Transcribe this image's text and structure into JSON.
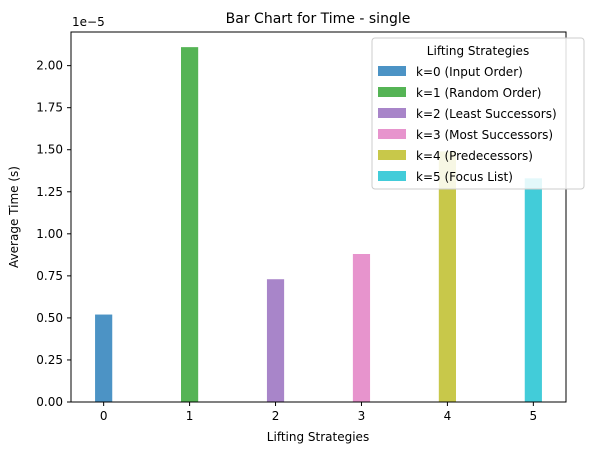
{
  "chart_data": {
    "type": "bar",
    "title": "Bar Chart for Time - single",
    "xlabel": "Lifting Strategies",
    "ylabel": "Average Time (s)",
    "y_scale_label": "1e−5",
    "categories": [
      "0",
      "1",
      "2",
      "3",
      "4",
      "5"
    ],
    "ylim": [
      0,
      2.2
    ],
    "yticks": [
      "0.00",
      "0.25",
      "0.50",
      "0.75",
      "1.00",
      "1.25",
      "1.50",
      "1.75",
      "2.00"
    ],
    "legend": {
      "title": "Lifting Strategies",
      "placement": "top-right"
    },
    "series": [
      {
        "name": "k=0 (Input Order)",
        "color": "#4c93c5",
        "x": 0,
        "value": 0.52
      },
      {
        "name": "k=1 (Random Order)",
        "color": "#55b455",
        "x": 1,
        "value": 2.11
      },
      {
        "name": "k=2 (Least Successors)",
        "color": "#a885c9",
        "x": 2,
        "value": 0.73
      },
      {
        "name": "k=3 (Most Successors)",
        "color": "#e794cd",
        "x": 3,
        "value": 0.88
      },
      {
        "name": "k=4 (Predecessors)",
        "color": "#c8c84a",
        "x": 4,
        "value": 1.49
      },
      {
        "name": "k=5 (Focus List)",
        "color": "#42ccd9",
        "x": 5,
        "value": 1.33
      }
    ]
  }
}
